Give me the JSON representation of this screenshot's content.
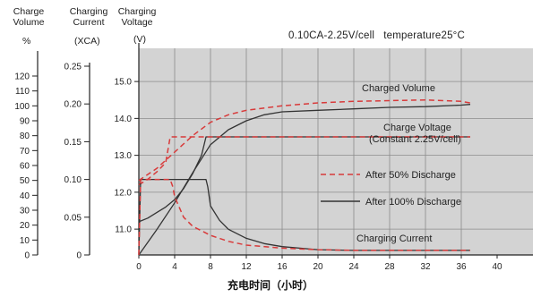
{
  "chart_data": {
    "type": "line",
    "conditions": "0.10CA-2.25V/cell   temperature25°C",
    "xlabel": "充电时间（小时）",
    "x_ticks": [
      "0",
      "4",
      "8",
      "12",
      "16",
      "20",
      "24",
      "28",
      "32",
      "36",
      "40"
    ],
    "xlim": [
      0,
      40
    ],
    "axes": {
      "charge_volume": {
        "header": [
          "Charge",
          "Volume"
        ],
        "unit": "%",
        "ticks": [
          "0",
          "10",
          "20",
          "30",
          "40",
          "50",
          "60",
          "70",
          "80",
          "90",
          "100",
          "110",
          "120"
        ],
        "range": [
          0,
          120
        ]
      },
      "charging_current": {
        "header": [
          "Charging",
          "Current"
        ],
        "unit": "(XCA)",
        "ticks": [
          "0",
          "0.05",
          "0.10",
          "0.15",
          "0.20",
          "0.25"
        ],
        "range": [
          0,
          0.25
        ]
      },
      "charging_voltage": {
        "header": [
          "Charging",
          "Voltage"
        ],
        "unit": "(V)",
        "ticks": [
          "11.0",
          "12.0",
          "13.0",
          "14.0",
          "15.0"
        ],
        "range": [
          10.3,
          15.9
        ]
      }
    },
    "grid": true,
    "legend": {
      "position": "center-right",
      "entries": [
        {
          "label": "After 50% Discharge",
          "style": "dashed",
          "color": "#d83a3a"
        },
        {
          "label": "After 100% Discharge",
          "style": "solid",
          "color": "#333333"
        }
      ]
    },
    "annotations": {
      "charged_volume": "Charged Volume",
      "charge_voltage": "Charge Voltage",
      "charge_voltage_sub": "(Constant 2.25V/cell)",
      "charging_current": "Charging Current"
    },
    "series": [
      {
        "name": "Charged Volume — After 100% Discharge",
        "axis": "charge_volume",
        "style": "solid",
        "x": [
          0,
          2,
          4,
          6,
          8,
          10,
          12,
          14,
          16,
          20,
          24,
          28,
          32,
          36,
          37
        ],
        "y": [
          0,
          17,
          35,
          55,
          74,
          84,
          90,
          94,
          96,
          97,
          98,
          99,
          99.5,
          100.5,
          101
        ]
      },
      {
        "name": "Charged Volume — After 50% Discharge",
        "axis": "charge_volume",
        "style": "dashed",
        "x": [
          0,
          1,
          2,
          4,
          6,
          8,
          10,
          12,
          16,
          20,
          24,
          28,
          32,
          36,
          37
        ],
        "y": [
          50,
          54,
          58,
          69,
          80,
          89,
          94,
          97,
          100,
          102,
          103,
          103.5,
          104,
          103,
          102
        ]
      },
      {
        "name": "Charge Voltage — After 100% Discharge",
        "axis": "charging_voltage",
        "style": "solid",
        "x": [
          0,
          1,
          2,
          3,
          4,
          5,
          6,
          7,
          7.5,
          8,
          12,
          20,
          28,
          37
        ],
        "y": [
          11.2,
          11.3,
          11.45,
          11.6,
          11.8,
          12.1,
          12.5,
          13.0,
          13.5,
          13.5,
          13.5,
          13.5,
          13.5,
          13.5
        ]
      },
      {
        "name": "Charge Voltage — After 50% Discharge",
        "axis": "charging_voltage",
        "style": "dashed",
        "x": [
          0,
          1,
          2,
          3,
          3.5,
          4,
          8,
          12,
          20,
          28,
          37
        ],
        "y": [
          12.2,
          12.35,
          12.55,
          12.8,
          13.5,
          13.5,
          13.5,
          13.5,
          13.5,
          13.5,
          13.5
        ]
      },
      {
        "name": "Charging Current — After 100% Discharge",
        "axis": "charging_current",
        "style": "solid",
        "x": [
          0,
          0.2,
          4,
          7.5,
          7.7,
          8,
          9,
          10,
          12,
          14,
          16,
          20,
          24,
          28,
          37
        ],
        "y": [
          0,
          0.1,
          0.1,
          0.1,
          0.09,
          0.065,
          0.046,
          0.034,
          0.022,
          0.015,
          0.011,
          0.007,
          0.006,
          0.006,
          0.006
        ]
      },
      {
        "name": "Charging Current — After 50% Discharge",
        "axis": "charging_current",
        "style": "dashed",
        "x": [
          0,
          0.2,
          3.5,
          3.8,
          4,
          5,
          6,
          8,
          10,
          12,
          16,
          20,
          24,
          28,
          37
        ],
        "y": [
          0,
          0.1,
          0.1,
          0.09,
          0.077,
          0.05,
          0.038,
          0.026,
          0.018,
          0.013,
          0.009,
          0.007,
          0.006,
          0.006,
          0.006
        ]
      }
    ]
  }
}
